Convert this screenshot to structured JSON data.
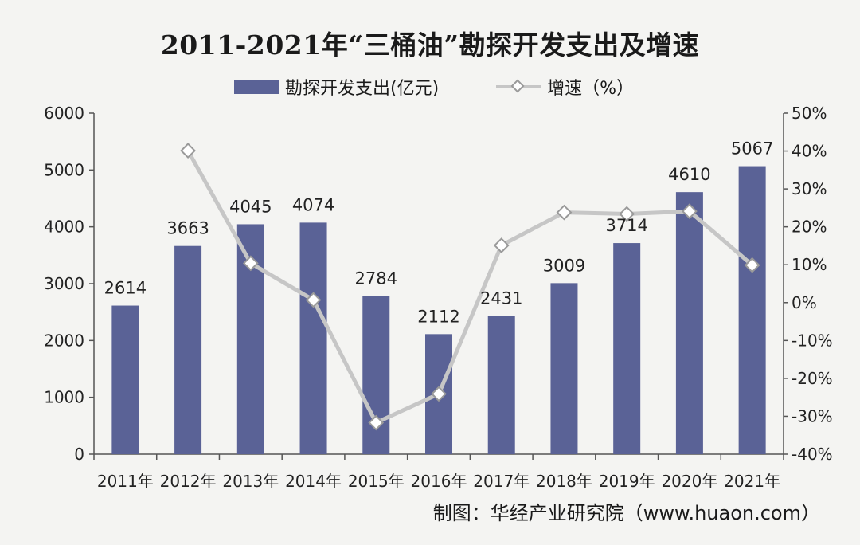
{
  "title": "2011-2021年“三桶油”勘探开发支出及增速",
  "footnote": "制图：华经产业研究院（www.huaon.com）",
  "colors": {
    "bar": "#5a6296",
    "line": "#c6c6c6",
    "marker_fill": "#ffffff",
    "marker_stroke": "#9a9a9a",
    "axis": "#555555",
    "background": "#f4f4f2"
  },
  "chart_data": {
    "type": "bar",
    "categories": [
      "2011年",
      "2012年",
      "2013年",
      "2014年",
      "2015年",
      "2016年",
      "2017年",
      "2018年",
      "2019年",
      "2020年",
      "2021年"
    ],
    "series": [
      {
        "name": "勘探开发支出(亿元)",
        "type": "bar",
        "axis": "left",
        "values": [
          2614,
          3663,
          4045,
          4074,
          2784,
          2112,
          2431,
          3009,
          3714,
          4610,
          5067
        ],
        "labels": [
          "2614",
          "3663",
          "4045",
          "4074",
          "2784",
          "2112",
          "2431",
          "3009",
          "3714",
          "4610",
          "5067"
        ]
      },
      {
        "name": "增速（%）",
        "type": "line",
        "axis": "right",
        "values": [
          null,
          40.1,
          10.4,
          0.7,
          -31.7,
          -24.1,
          15.1,
          23.8,
          23.4,
          24.1,
          9.9
        ]
      }
    ],
    "left_axis": {
      "ylim": [
        0,
        6000
      ],
      "ticks": [
        0,
        1000,
        2000,
        3000,
        4000,
        5000,
        6000
      ],
      "tick_labels": [
        "0",
        "1000",
        "2000",
        "3000",
        "4000",
        "5000",
        "6000"
      ]
    },
    "right_axis": {
      "ylim": [
        -40,
        50
      ],
      "ticks": [
        -40,
        -30,
        -20,
        -10,
        0,
        10,
        20,
        30,
        40,
        50
      ],
      "tick_labels": [
        "-40%",
        "-30%",
        "-20%",
        "-10%",
        "0%",
        "10%",
        "20%",
        "30%",
        "40%",
        "50%"
      ]
    },
    "legend_position": "top-center",
    "grid": false
  }
}
